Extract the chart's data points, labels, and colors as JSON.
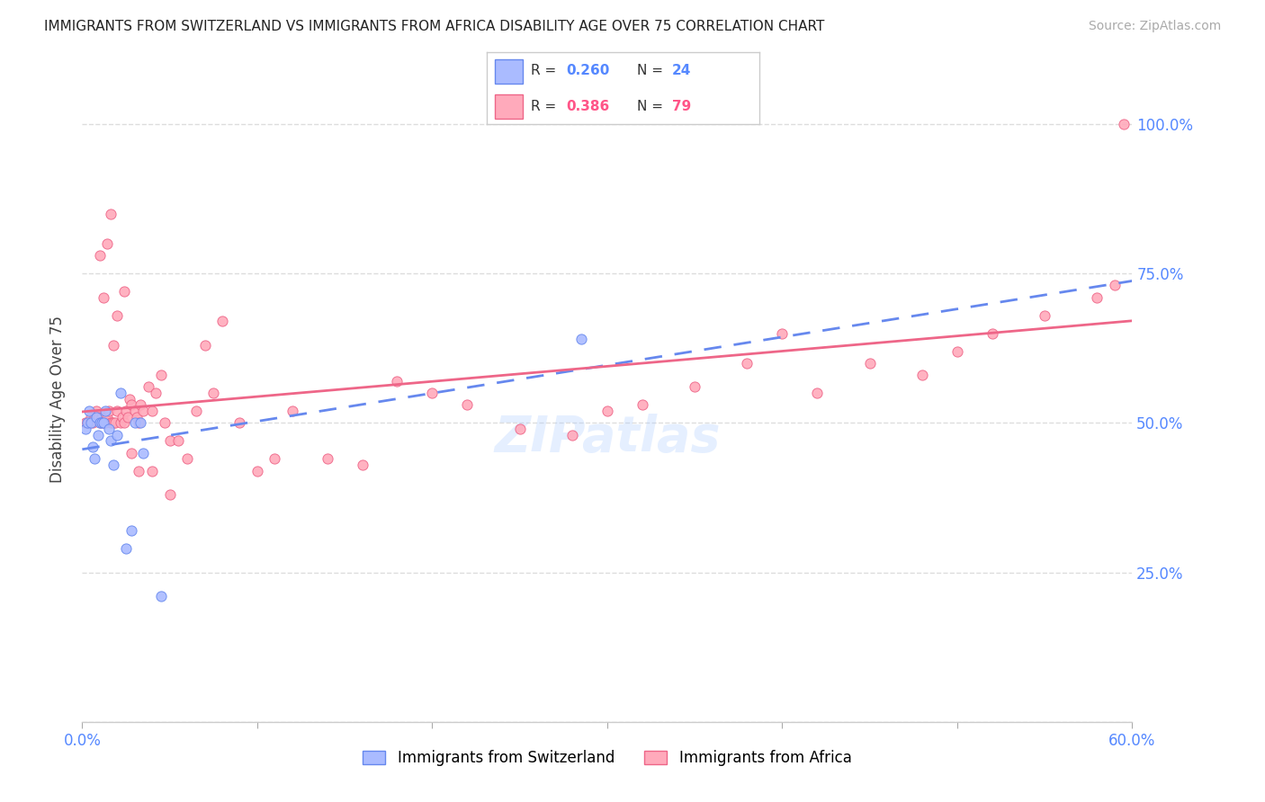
{
  "title": "IMMIGRANTS FROM SWITZERLAND VS IMMIGRANTS FROM AFRICA DISABILITY AGE OVER 75 CORRELATION CHART",
  "source": "Source: ZipAtlas.com",
  "ylabel": "Disability Age Over 75",
  "xlim": [
    0.0,
    0.6
  ],
  "ylim": [
    0.0,
    1.08
  ],
  "ytick_values": [
    0.0,
    0.25,
    0.5,
    0.75,
    1.0
  ],
  "ytick_labels": [
    "",
    "25.0%",
    "50.0%",
    "75.0%",
    "100.0%"
  ],
  "xtick_values": [
    0.0,
    0.1,
    0.2,
    0.3,
    0.4,
    0.5,
    0.6
  ],
  "xtick_labels": [
    "0.0%",
    "",
    "",
    "",
    "",
    "",
    "60.0%"
  ],
  "legend_R_blue": "0.260",
  "legend_N_blue": "24",
  "legend_R_pink": "0.386",
  "legend_N_pink": "79",
  "color_blue_fill": "#aabbff",
  "color_blue_edge": "#6688ee",
  "color_pink_fill": "#ffaabb",
  "color_pink_edge": "#ee6688",
  "color_blue_text": "#5588ff",
  "color_pink_text": "#ff5588",
  "color_grid": "#dddddd",
  "switzerland_x": [
    0.002,
    0.003,
    0.004,
    0.005,
    0.006,
    0.007,
    0.008,
    0.009,
    0.01,
    0.011,
    0.012,
    0.013,
    0.015,
    0.016,
    0.018,
    0.02,
    0.022,
    0.025,
    0.028,
    0.03,
    0.033,
    0.035,
    0.045,
    0.285
  ],
  "switzerland_y": [
    0.49,
    0.5,
    0.52,
    0.5,
    0.46,
    0.44,
    0.51,
    0.48,
    0.5,
    0.5,
    0.5,
    0.52,
    0.49,
    0.47,
    0.43,
    0.48,
    0.55,
    0.29,
    0.32,
    0.5,
    0.5,
    0.45,
    0.21,
    0.64
  ],
  "africa_x": [
    0.002,
    0.003,
    0.004,
    0.005,
    0.006,
    0.007,
    0.008,
    0.009,
    0.01,
    0.011,
    0.012,
    0.013,
    0.014,
    0.015,
    0.016,
    0.017,
    0.018,
    0.019,
    0.02,
    0.022,
    0.023,
    0.024,
    0.025,
    0.026,
    0.027,
    0.028,
    0.03,
    0.031,
    0.032,
    0.033,
    0.035,
    0.038,
    0.04,
    0.042,
    0.045,
    0.047,
    0.05,
    0.055,
    0.06,
    0.065,
    0.07,
    0.075,
    0.08,
    0.09,
    0.1,
    0.11,
    0.12,
    0.14,
    0.16,
    0.18,
    0.2,
    0.22,
    0.25,
    0.28,
    0.3,
    0.32,
    0.35,
    0.38,
    0.4,
    0.42,
    0.45,
    0.48,
    0.5,
    0.52,
    0.55,
    0.58,
    0.59,
    0.595,
    0.01,
    0.012,
    0.014,
    0.016,
    0.018,
    0.02,
    0.024,
    0.028,
    0.032,
    0.04,
    0.05
  ],
  "africa_y": [
    0.5,
    0.5,
    0.5,
    0.51,
    0.5,
    0.51,
    0.52,
    0.51,
    0.5,
    0.51,
    0.5,
    0.5,
    0.51,
    0.52,
    0.5,
    0.5,
    0.5,
    0.5,
    0.52,
    0.5,
    0.51,
    0.5,
    0.52,
    0.51,
    0.54,
    0.53,
    0.52,
    0.51,
    0.5,
    0.53,
    0.52,
    0.56,
    0.52,
    0.55,
    0.58,
    0.5,
    0.47,
    0.47,
    0.44,
    0.52,
    0.63,
    0.55,
    0.67,
    0.5,
    0.42,
    0.44,
    0.52,
    0.44,
    0.43,
    0.57,
    0.55,
    0.53,
    0.49,
    0.48,
    0.52,
    0.53,
    0.56,
    0.6,
    0.65,
    0.55,
    0.6,
    0.58,
    0.62,
    0.65,
    0.68,
    0.71,
    0.73,
    1.0,
    0.78,
    0.71,
    0.8,
    0.85,
    0.63,
    0.68,
    0.72,
    0.45,
    0.42,
    0.42,
    0.38
  ]
}
